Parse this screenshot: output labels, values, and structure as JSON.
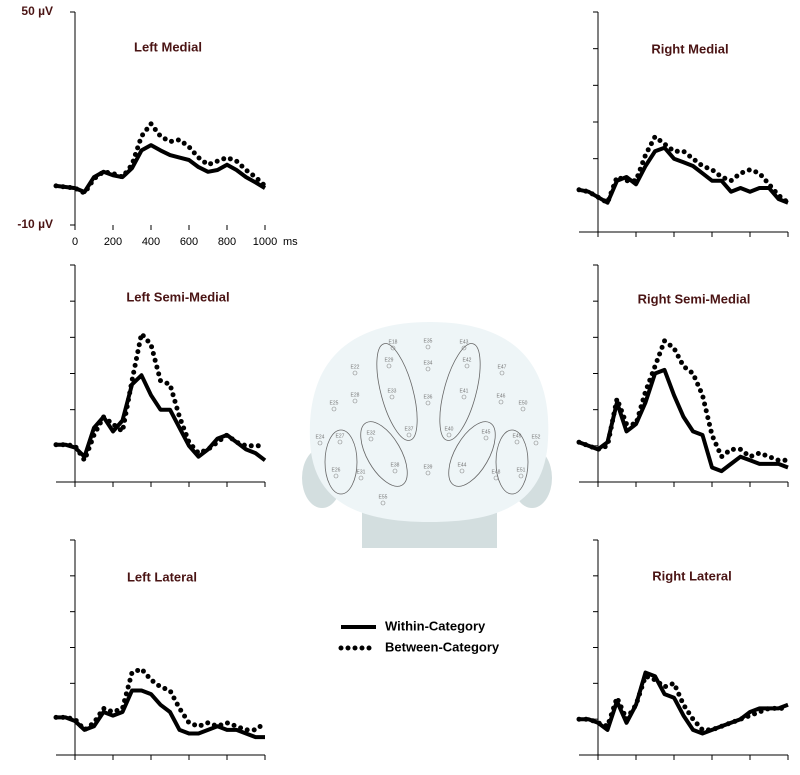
{
  "legend": [
    {
      "name": "Within-Category",
      "color": "#000000",
      "style": "solid"
    },
    {
      "name": "Between-Category",
      "color": "#000000",
      "style": "dotted"
    }
  ],
  "electrodes": [
    "E18",
    "E35",
    "E43",
    "E29",
    "E34",
    "E42",
    "E22",
    "E47",
    "E28",
    "E33",
    "E36",
    "E41",
    "E46",
    "E25",
    "E50",
    "E37",
    "E40",
    "E24",
    "E27",
    "E32",
    "E45",
    "E49",
    "E52",
    "E26",
    "E31",
    "E38",
    "E39",
    "E44",
    "E48",
    "E51",
    "E55"
  ],
  "chart_data": [
    {
      "type": "line",
      "title": "Left Medial",
      "tick_labels": true,
      "x_unit": "ms",
      "x": [
        -100,
        -50,
        0,
        50,
        100,
        150,
        200,
        250,
        300,
        350,
        400,
        450,
        500,
        550,
        600,
        650,
        700,
        750,
        800,
        850,
        900,
        950,
        1000
      ],
      "xlim": [
        -100,
        1000
      ],
      "xticks": [
        0,
        200,
        400,
        600,
        800,
        1000
      ],
      "ylim": [
        -10,
        50
      ],
      "yticks": [
        {
          "value": 50,
          "label": "50 µV"
        },
        {
          "value": -10,
          "label": "-10 µV"
        }
      ],
      "series": [
        {
          "values": [
            1,
            0.7,
            0.4,
            -0.7,
            3.5,
            5,
            4,
            3.5,
            6,
            11,
            12.5,
            11,
            9.7,
            9,
            8.3,
            6.3,
            5,
            5.5,
            7,
            5.5,
            3.5,
            2,
            0.4
          ]
        },
        {
          "values": [
            1,
            0.7,
            0.4,
            -1,
            3,
            5,
            4.5,
            3.5,
            7,
            15,
            18.5,
            15,
            13.5,
            14,
            12,
            9,
            7,
            8,
            9,
            8,
            5.5,
            3.5,
            1
          ]
        }
      ]
    },
    {
      "type": "line",
      "title": "Right Medial",
      "tick_labels": false,
      "x": [
        -100,
        -50,
        0,
        50,
        100,
        150,
        200,
        250,
        300,
        350,
        400,
        450,
        500,
        550,
        600,
        650,
        700,
        750,
        800,
        850,
        900,
        950,
        1000
      ],
      "xlim": [
        -100,
        1000
      ],
      "xticks": [
        0,
        200,
        400,
        600,
        800,
        1000
      ],
      "ylim": [
        -10,
        50
      ],
      "yticks": [
        -10,
        0,
        10,
        20,
        30,
        40,
        50
      ],
      "series": [
        {
          "values": [
            1.5,
            1,
            -0.5,
            -2,
            4,
            5,
            3,
            8,
            12,
            13,
            10,
            9,
            8,
            6,
            4,
            4,
            1,
            2,
            1,
            2,
            2,
            -1,
            -2
          ]
        },
        {
          "values": [
            1.5,
            1,
            -0.5,
            -2,
            5,
            4,
            4,
            11,
            16,
            14,
            12,
            12,
            10,
            8,
            7,
            5,
            4,
            6,
            7,
            6,
            3,
            0,
            -2
          ]
        }
      ]
    },
    {
      "type": "line",
      "title": "Left Semi-Medial",
      "tick_labels": false,
      "x": [
        -100,
        -50,
        0,
        50,
        100,
        150,
        200,
        250,
        300,
        350,
        400,
        450,
        500,
        550,
        600,
        650,
        700,
        750,
        800,
        850,
        900,
        950,
        1000
      ],
      "xlim": [
        -100,
        1000
      ],
      "xticks": [
        0,
        200,
        400,
        600,
        800,
        1000
      ],
      "ylim": [
        -10,
        50
      ],
      "yticks": [
        -10,
        0,
        10,
        20,
        30,
        40,
        50
      ],
      "series": [
        {
          "values": [
            0.3,
            0.3,
            -0.5,
            -3,
            5,
            8,
            4,
            7,
            17,
            19.5,
            14,
            10,
            10,
            5,
            0,
            -3,
            -1,
            2,
            3,
            1,
            -1,
            -2,
            -4
          ]
        },
        {
          "values": [
            0.3,
            0.3,
            0,
            -4,
            3,
            8,
            6,
            4,
            18,
            31,
            28,
            18,
            17,
            8,
            1,
            -2,
            -1,
            1,
            3,
            1,
            0,
            0,
            0
          ]
        }
      ]
    },
    {
      "type": "line",
      "title": "Right Semi-Medial",
      "tick_labels": false,
      "x": [
        -100,
        -50,
        0,
        50,
        100,
        150,
        200,
        250,
        300,
        350,
        400,
        450,
        500,
        550,
        600,
        650,
        700,
        750,
        800,
        850,
        900,
        950,
        1000
      ],
      "xlim": [
        -100,
        1000
      ],
      "xticks": [
        0,
        200,
        400,
        600,
        800,
        1000
      ],
      "ylim": [
        -10,
        50
      ],
      "yticks": [
        -10,
        0,
        10,
        20,
        30,
        40,
        50
      ],
      "series": [
        {
          "values": [
            1,
            0,
            -1,
            1,
            12,
            4,
            6,
            12,
            20,
            21,
            14,
            8,
            4,
            3,
            -6,
            -7,
            -5,
            -3,
            -4,
            -5,
            -5,
            -5,
            -6
          ]
        },
        {
          "values": [
            1,
            0,
            -1,
            0,
            13,
            6,
            6,
            15,
            22,
            29,
            27,
            22,
            20,
            14,
            3,
            -3,
            -1,
            -1,
            -3,
            -2,
            -3,
            -4,
            -4
          ]
        }
      ]
    },
    {
      "type": "line",
      "title": "Left Lateral",
      "tick_labels": false,
      "x": [
        -100,
        -50,
        0,
        50,
        100,
        150,
        200,
        250,
        300,
        350,
        400,
        450,
        500,
        550,
        600,
        650,
        700,
        750,
        800,
        850,
        900,
        950,
        1000
      ],
      "xlim": [
        -100,
        1000
      ],
      "xticks": [
        0,
        200,
        400,
        600,
        800,
        1000
      ],
      "ylim": [
        -10,
        50
      ],
      "yticks": [
        -10,
        0,
        10,
        20,
        30,
        40,
        50
      ],
      "series": [
        {
          "values": [
            0.5,
            0.5,
            -0.5,
            -3,
            -2,
            2,
            1,
            2,
            8,
            8,
            7,
            4,
            2,
            -3,
            -4,
            -4,
            -3,
            -2,
            -3,
            -3,
            -4,
            -5,
            -5
          ]
        },
        {
          "values": [
            0.5,
            0.5,
            0,
            -3,
            -1,
            3,
            2,
            3,
            13,
            14,
            11,
            9,
            8,
            3,
            -1,
            -2,
            -1,
            -2,
            -1,
            -2,
            -3,
            -3,
            -1
          ]
        }
      ]
    },
    {
      "type": "line",
      "title": "Right Lateral",
      "tick_labels": false,
      "x": [
        -100,
        -50,
        0,
        50,
        100,
        150,
        200,
        250,
        300,
        350,
        400,
        450,
        500,
        550,
        600,
        650,
        700,
        750,
        800,
        850,
        900,
        950,
        1000
      ],
      "xlim": [
        -100,
        1000
      ],
      "xticks": [
        0,
        200,
        400,
        600,
        800,
        1000
      ],
      "ylim": [
        -10,
        50
      ],
      "yticks": [
        -10,
        0,
        10,
        20,
        30,
        40,
        50
      ],
      "series": [
        {
          "values": [
            0,
            0,
            -1,
            -3,
            5,
            -1,
            4,
            13,
            12,
            7,
            6,
            1,
            -3,
            -4,
            -3,
            -2,
            -1,
            0,
            2,
            3,
            3,
            3,
            4
          ]
        },
        {
          "values": [
            0,
            0,
            -1,
            -2,
            6,
            0,
            4,
            12,
            11,
            9,
            10,
            4,
            0,
            -3,
            -3,
            -2,
            -1,
            0,
            1,
            2,
            3,
            3,
            3
          ]
        }
      ]
    }
  ]
}
